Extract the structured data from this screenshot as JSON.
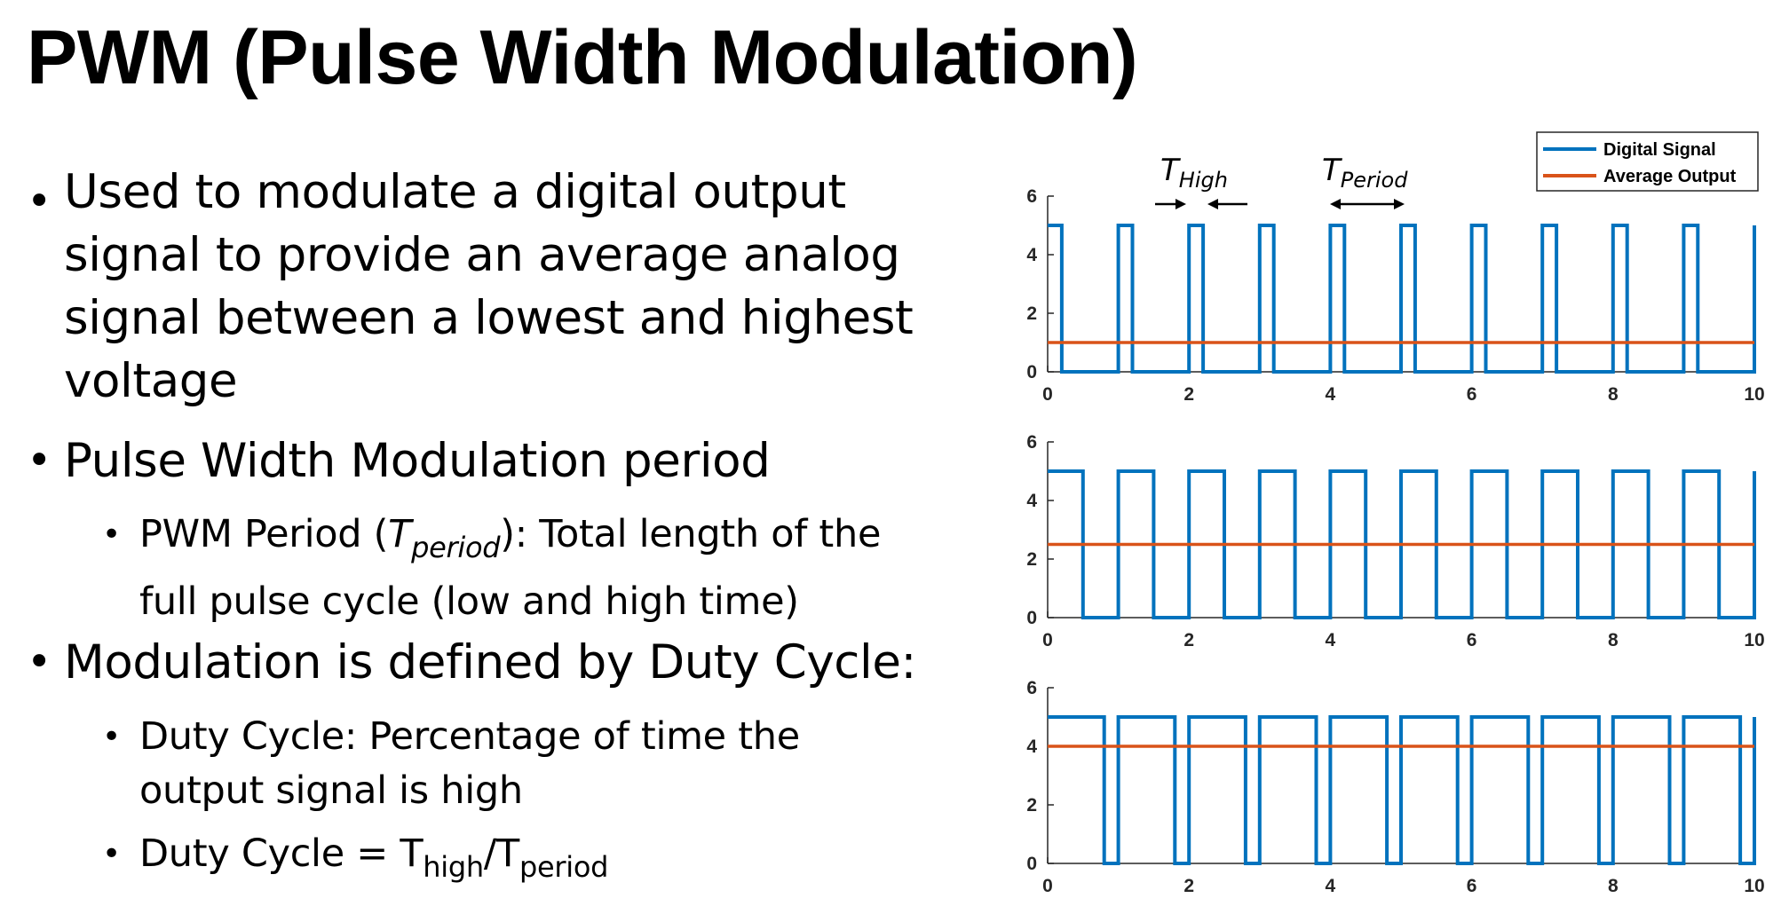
{
  "title": "PWM (Pulse Width Modulation)",
  "bullets": {
    "b1": "Used to modulate a digital output signal to provide an average analog signal between a lowest and highest voltage",
    "b2": "Pulse Width Modulation period",
    "b2_1_prefix": "PWM Period (",
    "b2_1_T": "T",
    "b2_1_sub": "period",
    "b2_1_suffix": "): Total length of the",
    "b2_1_line2": "full pulse cycle (low and high time)",
    "b3": "Modulation is defined by Duty Cycle:",
    "b3_1_line1": "Duty Cycle: Percentage of time the",
    "b3_1_line2": "output signal is high",
    "b3_2_prefix": "Duty Cycle = T",
    "b3_2_sub1": "high",
    "b3_2_mid": "/T",
    "b3_2_sub2": "period"
  },
  "colors": {
    "digital": "#0072BD",
    "average": "#D95319"
  },
  "chart_data": [
    {
      "type": "line",
      "x_ticks": [
        "0",
        "2",
        "4",
        "6",
        "8",
        "10"
      ],
      "y_ticks": [
        "0",
        "2",
        "4",
        "6"
      ],
      "xlim": [
        0,
        10
      ],
      "ylim": [
        0,
        6
      ],
      "period": 1,
      "duty_cycle": 0.2,
      "high": 5,
      "low": 0,
      "series": [
        {
          "name": "Digital Signal",
          "kind": "pwm"
        },
        {
          "name": "Average Output",
          "kind": "constant",
          "value": 1
        }
      ],
      "legend": [
        "Digital Signal",
        "Average Output"
      ],
      "legend_position": "top-right",
      "annotations": [
        {
          "T": "T",
          "sub": "High"
        },
        {
          "T": "T",
          "sub": "Period"
        }
      ]
    },
    {
      "type": "line",
      "x_ticks": [
        "0",
        "2",
        "4",
        "6",
        "8",
        "10"
      ],
      "y_ticks": [
        "0",
        "2",
        "4",
        "6"
      ],
      "xlim": [
        0,
        10
      ],
      "ylim": [
        0,
        6
      ],
      "period": 1,
      "duty_cycle": 0.5,
      "high": 5,
      "low": 0,
      "series": [
        {
          "kind": "pwm"
        },
        {
          "kind": "constant",
          "value": 2.5
        }
      ]
    },
    {
      "type": "line",
      "x_ticks": [
        "0",
        "2",
        "4",
        "6",
        "8",
        "10"
      ],
      "y_ticks": [
        "0",
        "2",
        "4",
        "6"
      ],
      "xlim": [
        0,
        10
      ],
      "ylim": [
        0,
        6
      ],
      "period": 1,
      "duty_cycle": 0.8,
      "high": 5,
      "low": 0,
      "series": [
        {
          "kind": "pwm"
        },
        {
          "kind": "constant",
          "value": 4
        }
      ]
    }
  ]
}
